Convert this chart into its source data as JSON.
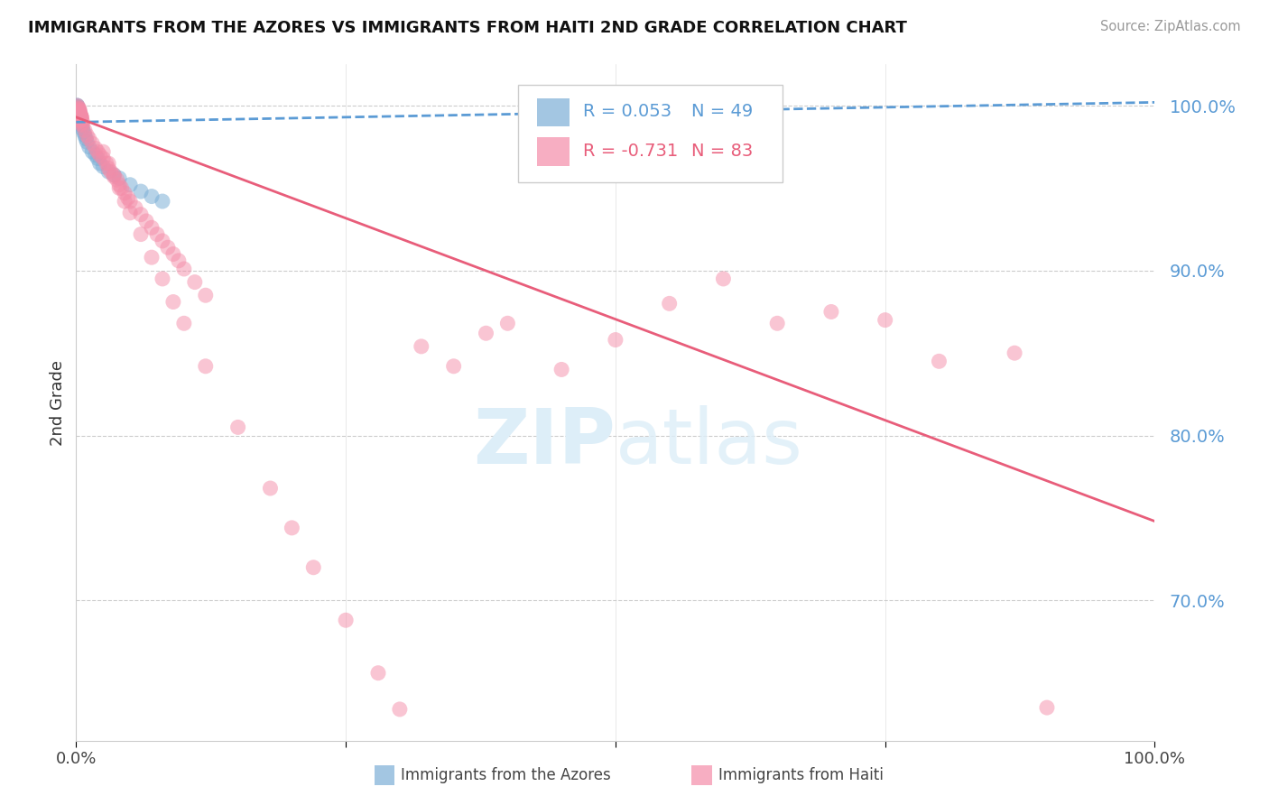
{
  "title": "IMMIGRANTS FROM THE AZORES VS IMMIGRANTS FROM HAITI 2ND GRADE CORRELATION CHART",
  "source": "Source: ZipAtlas.com",
  "ylabel": "2nd Grade",
  "xlabel_azores": "Immigrants from the Azores",
  "xlabel_haiti": "Immigrants from Haiti",
  "xlim": [
    0.0,
    1.0
  ],
  "ylim": [
    0.615,
    1.025
  ],
  "yticks": [
    0.7,
    0.8,
    0.9,
    1.0
  ],
  "ytick_labels": [
    "70.0%",
    "80.0%",
    "90.0%",
    "100.0%"
  ],
  "r_azores": 0.053,
  "n_azores": 49,
  "r_haiti": -0.731,
  "n_haiti": 83,
  "azores_color": "#7cafd6",
  "haiti_color": "#f48ca8",
  "trend_azores_color": "#5b9bd5",
  "trend_haiti_color": "#e85d7a",
  "watermark_color": "#ddeef8",
  "watermark_text": "ZIPatlas",
  "background_color": "#ffffff",
  "trend_az_x0": 0.0,
  "trend_az_y0": 0.99,
  "trend_az_x1": 1.0,
  "trend_az_y1": 1.002,
  "trend_ht_x0": 0.0,
  "trend_ht_y0": 0.993,
  "trend_ht_x1": 1.0,
  "trend_ht_y1": 0.748,
  "azores_scatter_x": [
    0.002,
    0.003,
    0.001,
    0.004,
    0.002,
    0.001,
    0.003,
    0.002,
    0.001,
    0.003,
    0.002,
    0.001,
    0.004,
    0.002,
    0.003,
    0.001,
    0.002,
    0.003,
    0.001,
    0.002,
    0.004,
    0.001,
    0.003,
    0.002,
    0.001,
    0.003,
    0.002,
    0.004,
    0.001,
    0.002,
    0.005,
    0.006,
    0.007,
    0.008,
    0.009,
    0.01,
    0.012,
    0.015,
    0.018,
    0.02,
    0.022,
    0.025,
    0.03,
    0.035,
    0.04,
    0.05,
    0.06,
    0.07,
    0.08
  ],
  "azores_scatter_y": [
    0.998,
    0.996,
    1.0,
    0.994,
    0.997,
    0.999,
    0.995,
    0.998,
    1.0,
    0.993,
    0.996,
    0.998,
    0.992,
    0.997,
    0.994,
    0.999,
    0.996,
    0.993,
    0.998,
    0.995,
    0.991,
    0.997,
    0.994,
    0.996,
    0.999,
    0.992,
    0.995,
    0.989,
    0.997,
    0.994,
    0.988,
    0.986,
    0.984,
    0.982,
    0.98,
    0.978,
    0.975,
    0.972,
    0.97,
    0.968,
    0.965,
    0.963,
    0.96,
    0.958,
    0.956,
    0.952,
    0.948,
    0.945,
    0.942
  ],
  "haiti_scatter_x": [
    0.002,
    0.003,
    0.001,
    0.004,
    0.003,
    0.002,
    0.005,
    0.003,
    0.002,
    0.004,
    0.003,
    0.005,
    0.004,
    0.006,
    0.005,
    0.004,
    0.003,
    0.005,
    0.004,
    0.006,
    0.008,
    0.01,
    0.012,
    0.015,
    0.018,
    0.02,
    0.022,
    0.025,
    0.028,
    0.03,
    0.032,
    0.035,
    0.038,
    0.04,
    0.042,
    0.045,
    0.048,
    0.05,
    0.055,
    0.06,
    0.065,
    0.07,
    0.075,
    0.08,
    0.085,
    0.09,
    0.095,
    0.1,
    0.11,
    0.12,
    0.025,
    0.03,
    0.035,
    0.04,
    0.045,
    0.05,
    0.06,
    0.07,
    0.08,
    0.09,
    0.1,
    0.12,
    0.15,
    0.18,
    0.2,
    0.22,
    0.25,
    0.28,
    0.3,
    0.32,
    0.35,
    0.38,
    0.4,
    0.45,
    0.5,
    0.55,
    0.6,
    0.65,
    0.7,
    0.75,
    0.8,
    0.87,
    0.9
  ],
  "haiti_scatter_y": [
    0.999,
    0.997,
    1.0,
    0.995,
    0.998,
    0.996,
    0.993,
    0.997,
    0.998,
    0.994,
    0.996,
    0.992,
    0.994,
    0.99,
    0.993,
    0.991,
    0.993,
    0.989,
    0.991,
    0.988,
    0.985,
    0.982,
    0.98,
    0.977,
    0.974,
    0.972,
    0.97,
    0.968,
    0.965,
    0.962,
    0.96,
    0.957,
    0.955,
    0.952,
    0.95,
    0.947,
    0.944,
    0.942,
    0.938,
    0.934,
    0.93,
    0.926,
    0.922,
    0.918,
    0.914,
    0.91,
    0.906,
    0.901,
    0.893,
    0.885,
    0.972,
    0.965,
    0.958,
    0.95,
    0.942,
    0.935,
    0.922,
    0.908,
    0.895,
    0.881,
    0.868,
    0.842,
    0.805,
    0.768,
    0.744,
    0.72,
    0.688,
    0.656,
    0.634,
    0.854,
    0.842,
    0.862,
    0.868,
    0.84,
    0.858,
    0.88,
    0.895,
    0.868,
    0.875,
    0.87,
    0.845,
    0.85,
    0.635
  ]
}
